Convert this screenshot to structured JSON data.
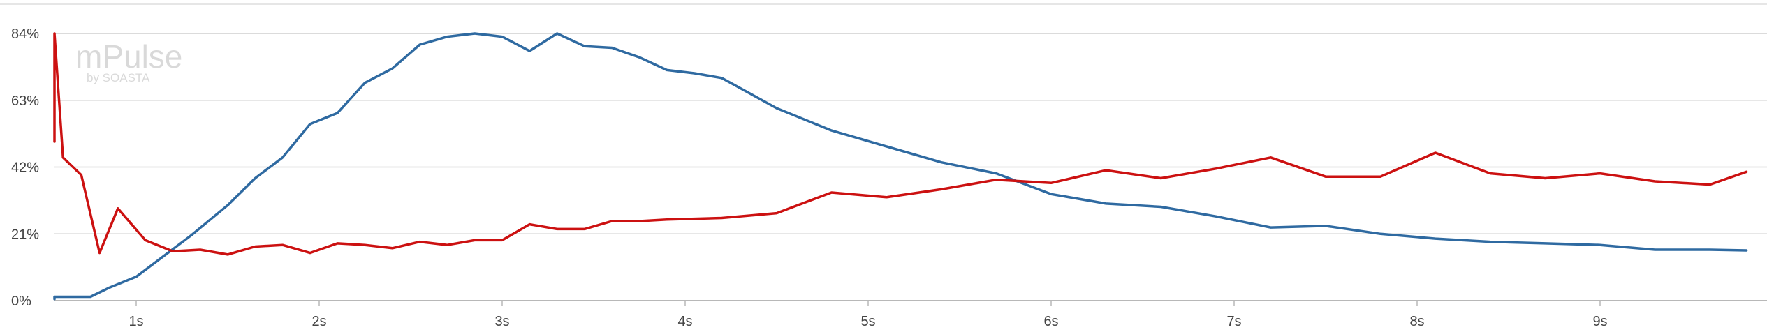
{
  "watermark": {
    "brand": "mPulse",
    "sub": "by SOASTA"
  },
  "chart_data": {
    "type": "line",
    "xlabel": "",
    "ylabel": "",
    "xlim": [
      0.45,
      9.8
    ],
    "ylim": [
      0,
      84
    ],
    "x_ticks": [
      1,
      2,
      3,
      4,
      5,
      6,
      7,
      8,
      9
    ],
    "x_tick_labels": [
      "1s",
      "2s",
      "3s",
      "4s",
      "5s",
      "6s",
      "7s",
      "8s",
      "9s"
    ],
    "y_ticks": [
      0,
      21,
      42,
      63,
      84
    ],
    "y_tick_labels": [
      "0%",
      "21%",
      "42%",
      "63%",
      "84%"
    ],
    "grid": true,
    "legend": "none",
    "series": [
      {
        "color": "#2f6aa1",
        "x": [
          0.45,
          0.55,
          0.65,
          0.75,
          0.85,
          1.0,
          1.15,
          1.3,
          1.5,
          1.65,
          1.8,
          1.95,
          2.1,
          2.25,
          2.4,
          2.55,
          2.7,
          2.85,
          3.0,
          3.15,
          3.3,
          3.45,
          3.6,
          3.75,
          3.9,
          4.05,
          4.2,
          4.5,
          4.8,
          5.1,
          5.4,
          5.7,
          6.0,
          6.3,
          6.6,
          6.9,
          7.2,
          7.5,
          7.8,
          8.1,
          8.4,
          8.7,
          9.0,
          9.3,
          9.6,
          9.8
        ],
        "y": [
          0.5,
          1.2,
          1.2,
          1.2,
          4,
          7.5,
          14,
          20.5,
          30,
          38.5,
          45,
          55.5,
          59,
          68.5,
          73,
          80.5,
          83,
          84,
          83,
          78.5,
          84,
          80,
          79.5,
          76.5,
          72.5,
          71.5,
          70,
          60.5,
          53.5,
          48.5,
          43.5,
          40,
          33.5,
          30.5,
          29.5,
          26.5,
          23,
          23.5,
          21,
          19.5,
          18.5,
          18,
          17.5,
          16,
          16,
          15.8
        ]
      },
      {
        "color": "#cc1111",
        "x": [
          0.45,
          0.47,
          0.5,
          0.6,
          0.7,
          0.8,
          0.9,
          1.05,
          1.2,
          1.35,
          1.5,
          1.65,
          1.8,
          1.95,
          2.1,
          2.25,
          2.4,
          2.55,
          2.7,
          2.85,
          3.0,
          3.15,
          3.3,
          3.45,
          3.6,
          3.75,
          3.9,
          4.2,
          4.5,
          4.8,
          5.1,
          5.4,
          5.7,
          6.0,
          6.3,
          6.6,
          6.9,
          7.2,
          7.5,
          7.8,
          8.1,
          8.4,
          8.7,
          9.0,
          9.3,
          9.6,
          9.8
        ],
        "y": [
          50,
          56,
          84,
          45,
          39.5,
          15,
          29,
          19,
          15.5,
          16,
          14.5,
          17,
          17.5,
          15,
          18,
          17.5,
          16.5,
          18.5,
          17.5,
          19,
          19,
          24,
          22.5,
          22.5,
          25,
          25,
          25.5,
          26,
          27.5,
          34,
          32.5,
          35,
          38,
          37,
          41,
          38.5,
          41.5,
          45,
          39,
          39,
          46.5,
          40,
          38.5,
          40,
          37.5,
          36.5,
          40.5
        ]
      }
    ]
  }
}
